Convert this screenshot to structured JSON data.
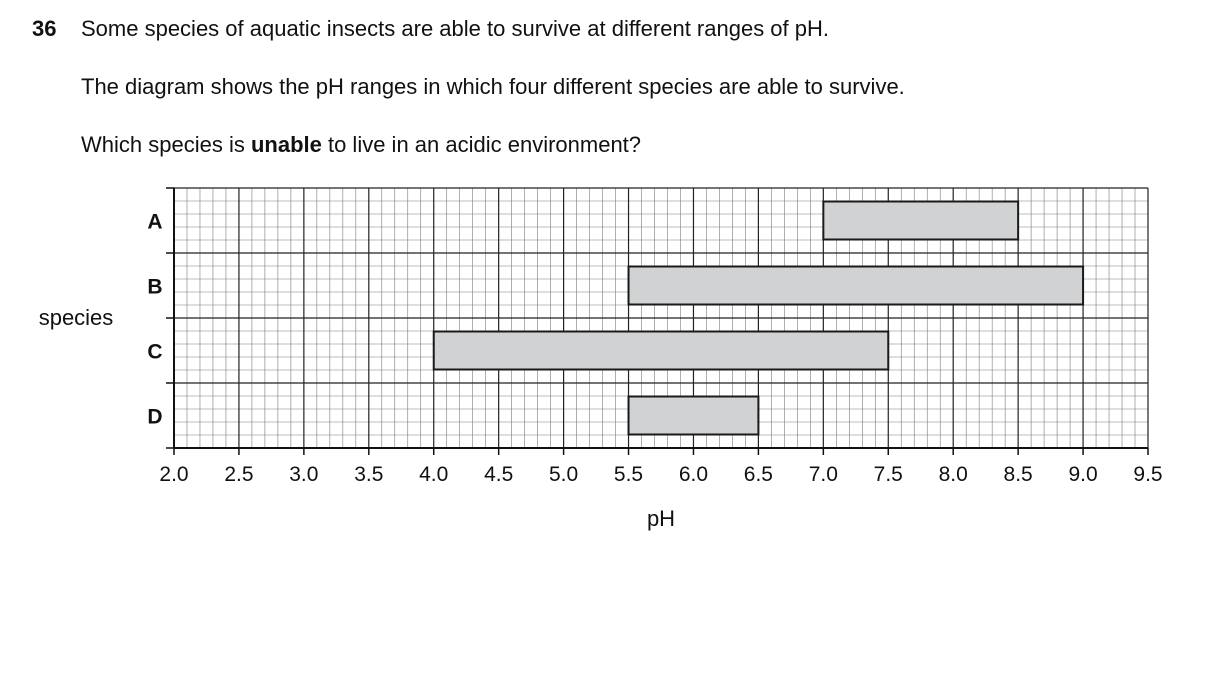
{
  "question": {
    "number": "36",
    "line1": "Some species of aquatic insects are able to survive at different ranges of pH.",
    "line2": "The diagram shows the pH ranges in which four different species are able to survive.",
    "line3_before": "Which species is ",
    "line3_bold": "unable",
    "line3_after": " to live in an acidic environment?"
  },
  "chart_data": {
    "type": "bar",
    "orientation": "horizontal-range",
    "title": "",
    "xlabel": "pH",
    "ylabel": "species",
    "xlim": [
      2.0,
      9.5
    ],
    "xticks": [
      "2.0",
      "2.5",
      "3.0",
      "3.5",
      "4.0",
      "4.5",
      "5.0",
      "5.5",
      "6.0",
      "6.5",
      "7.0",
      "7.5",
      "8.0",
      "8.5",
      "9.0",
      "9.5"
    ],
    "categories": [
      "A",
      "B",
      "C",
      "D"
    ],
    "ranges": [
      {
        "name": "A",
        "start": 7.0,
        "end": 8.5
      },
      {
        "name": "B",
        "start": 5.5,
        "end": 9.0
      },
      {
        "name": "C",
        "start": 4.0,
        "end": 7.5
      },
      {
        "name": "D",
        "start": 5.5,
        "end": 6.5
      }
    ],
    "grid": true,
    "bar_color": "#d1d2d4"
  }
}
